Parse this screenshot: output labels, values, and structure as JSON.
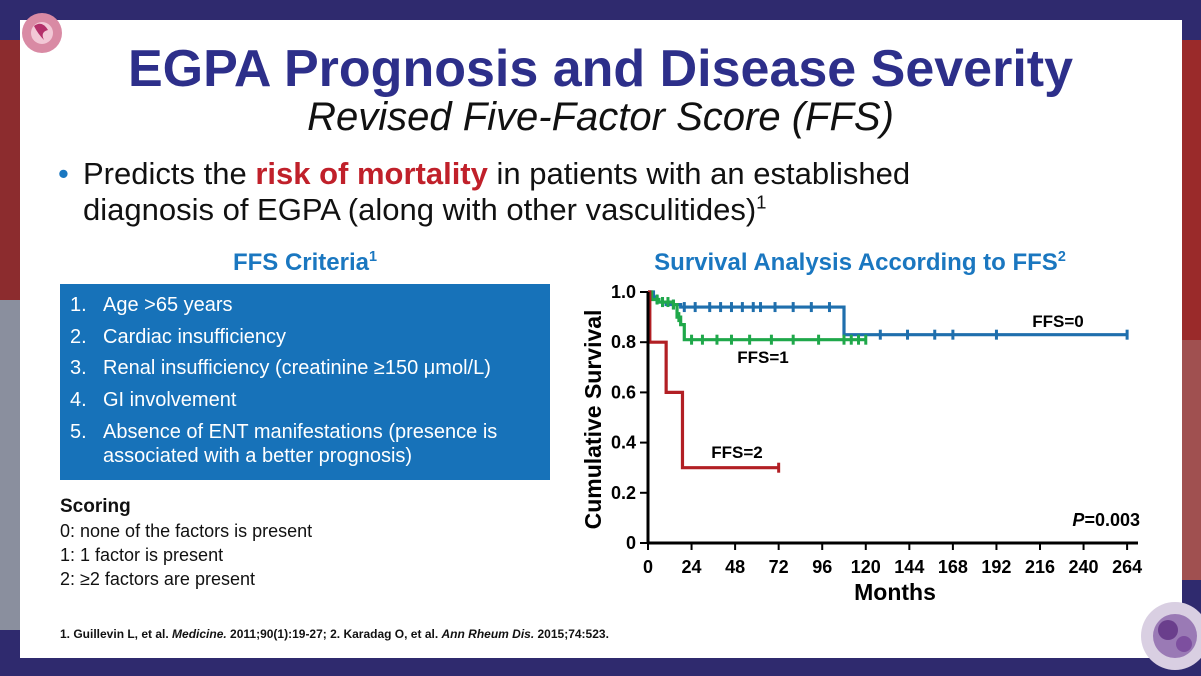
{
  "header": {
    "title": "EGPA Prognosis and Disease Severity",
    "subtitle": "Revised Five-Factor Score (FFS)"
  },
  "bullet": {
    "marker": "•",
    "pre": "Predicts the ",
    "emphasis": "risk of mortality",
    "post": " in patients with an established",
    "line2": "diagnosis of EGPA (along with other vasculitides)",
    "sup": "1"
  },
  "criteria": {
    "heading": "FFS Criteria",
    "heading_sup": "1",
    "items": [
      {
        "num": "1.",
        "text": "Age >65 years"
      },
      {
        "num": "2.",
        "text": "Cardiac insufficiency"
      },
      {
        "num": "3.",
        "text": "Renal insufficiency (creatinine ≥150 μmol/L)"
      },
      {
        "num": "4.",
        "text": "GI involvement"
      },
      {
        "num": "5.",
        "text": "Absence of ENT manifestations (presence is associated with a better prognosis)"
      }
    ]
  },
  "scoring": {
    "heading": "Scoring",
    "lines": [
      "0: none of the factors is present",
      "1: 1 factor is present",
      "2: ≥2 factors are present"
    ]
  },
  "references": {
    "r1_pre": "1. Guillevin L, et al. ",
    "r1_journal": "Medicine.",
    "r1_post": " 2011;90(1):19-27; 2. Karadag O, et al. ",
    "r2_journal": "Ann Rheum Dis.",
    "r2_post": " 2015;74:523."
  },
  "chart_data": {
    "type": "line",
    "title": "Survival Analysis According to FFS",
    "title_sup": "2",
    "xlabel": "Months",
    "ylabel": "Cumulative Survival",
    "xlim": [
      0,
      270
    ],
    "ylim": [
      0,
      1.0
    ],
    "xticks": [
      0,
      24,
      48,
      72,
      96,
      120,
      144,
      168,
      192,
      216,
      240,
      264
    ],
    "yticks": [
      0,
      0.2,
      0.4,
      0.6,
      0.8,
      1.0
    ],
    "ytick_labels": [
      "0",
      "0.2",
      "0.4",
      "0.6",
      "0.8",
      "1.0"
    ],
    "annotation": {
      "italic": "P",
      "text": "=0.003"
    },
    "series": [
      {
        "name": "FFS=0",
        "color": "#1f6fad",
        "steps": [
          [
            0,
            1.0
          ],
          [
            3,
            0.98
          ],
          [
            5,
            0.96
          ],
          [
            10,
            0.95
          ],
          [
            18,
            0.94
          ],
          [
            108,
            0.94
          ],
          [
            108,
            0.83
          ],
          [
            264,
            0.83
          ]
        ],
        "censor": [
          8,
          14,
          20,
          26,
          34,
          40,
          46,
          52,
          58,
          62,
          70,
          80,
          90,
          100,
          128,
          143,
          158,
          168,
          192,
          264
        ]
      },
      {
        "name": "FFS=1",
        "color": "#1fa84a",
        "steps": [
          [
            0,
            1.0
          ],
          [
            2,
            0.97
          ],
          [
            6,
            0.96
          ],
          [
            14,
            0.95
          ],
          [
            16,
            0.9
          ],
          [
            18,
            0.87
          ],
          [
            20,
            0.81
          ],
          [
            120,
            0.81
          ]
        ],
        "censor": [
          5,
          8,
          11,
          14,
          17,
          24,
          30,
          38,
          46,
          56,
          68,
          80,
          94,
          108,
          112,
          116,
          120
        ]
      },
      {
        "name": "FFS=2",
        "color": "#b21f24",
        "steps": [
          [
            0,
            1.0
          ],
          [
            1,
            0.8
          ],
          [
            10,
            0.8
          ],
          [
            10,
            0.6
          ],
          [
            19,
            0.6
          ],
          [
            19,
            0.3
          ],
          [
            72,
            0.3
          ]
        ],
        "censor": [
          72
        ]
      }
    ]
  },
  "colors": {
    "title": "#2d2f8a",
    "accent_blue": "#1a77c0",
    "criteria_box": "#1772b9",
    "emphasis_red": "#c0202a",
    "background_frame": "#2f2a6e"
  }
}
